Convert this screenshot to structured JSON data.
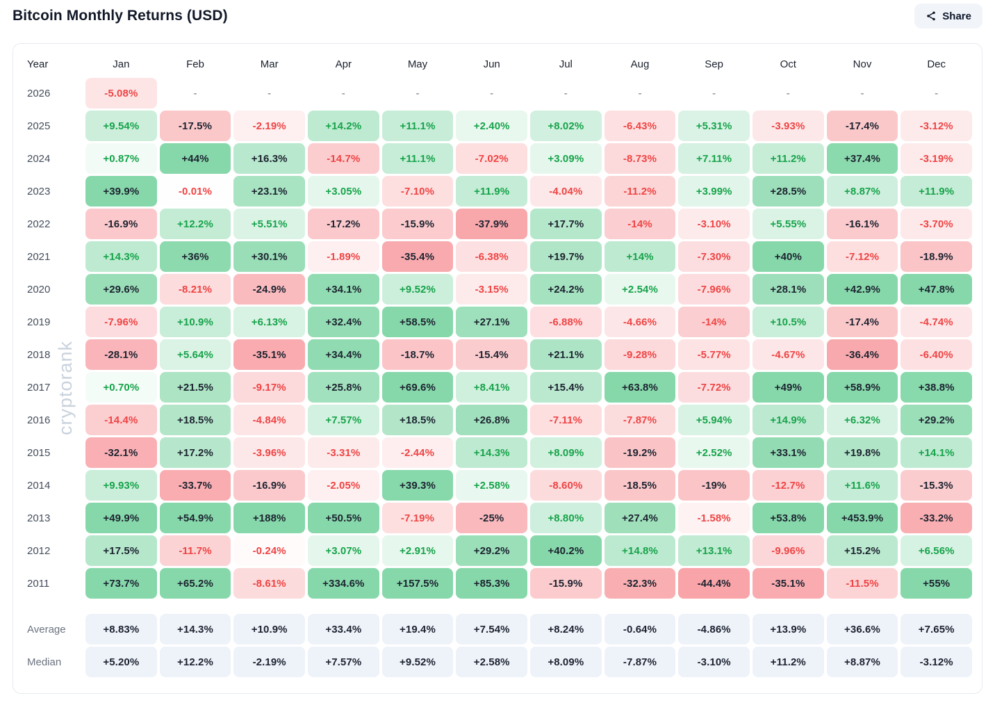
{
  "header": {
    "title": "Bitcoin Monthly Returns (USD)",
    "share_label": "Share"
  },
  "watermark": {
    "text": "cryptorank"
  },
  "colors": {
    "positive_text": "#16a34a",
    "negative_text": "#ef4444",
    "strong_text": "#1c2330",
    "positive_bg_max": "#86d8aa",
    "negative_bg_max": "#f8a4a8",
    "summary_bg": "#eef2f9",
    "dash_text": "#6b7280",
    "dark_text_threshold": 15
  },
  "chart_data": {
    "type": "heatmap",
    "title": "Bitcoin Monthly Returns (USD)",
    "row_header": "Year",
    "columns": [
      "Jan",
      "Feb",
      "Mar",
      "Apr",
      "May",
      "Jun",
      "Jul",
      "Aug",
      "Sep",
      "Oct",
      "Nov",
      "Dec"
    ],
    "max_abs_for_scale": 40,
    "rows": [
      {
        "year": "2026",
        "display": [
          "-5.08%",
          "-",
          "-",
          "-",
          "-",
          "-",
          "-",
          "-",
          "-",
          "-",
          "-",
          "-"
        ],
        "values": [
          -5.08,
          null,
          null,
          null,
          null,
          null,
          null,
          null,
          null,
          null,
          null,
          null
        ]
      },
      {
        "year": "2025",
        "display": [
          "+9.54%",
          "-17.5%",
          "-2.19%",
          "+14.2%",
          "+11.1%",
          "+2.40%",
          "+8.02%",
          "-6.43%",
          "+5.31%",
          "-3.93%",
          "-17.4%",
          "-3.12%"
        ],
        "values": [
          9.54,
          -17.5,
          -2.19,
          14.2,
          11.1,
          2.4,
          8.02,
          -6.43,
          5.31,
          -3.93,
          -17.4,
          -3.12
        ]
      },
      {
        "year": "2024",
        "display": [
          "+0.87%",
          "+44%",
          "+16.3%",
          "-14.7%",
          "+11.1%",
          "-7.02%",
          "+3.09%",
          "-8.73%",
          "+7.11%",
          "+11.2%",
          "+37.4%",
          "-3.19%"
        ],
        "values": [
          0.87,
          44,
          16.3,
          -14.7,
          11.1,
          -7.02,
          3.09,
          -8.73,
          7.11,
          11.2,
          37.4,
          -3.19
        ]
      },
      {
        "year": "2023",
        "display": [
          "+39.9%",
          "-0.01%",
          "+23.1%",
          "+3.05%",
          "-7.10%",
          "+11.9%",
          "-4.04%",
          "-11.2%",
          "+3.99%",
          "+28.5%",
          "+8.87%",
          "+11.9%"
        ],
        "values": [
          39.9,
          -0.01,
          23.1,
          3.05,
          -7.1,
          11.9,
          -4.04,
          -11.2,
          3.99,
          28.5,
          8.87,
          11.9
        ]
      },
      {
        "year": "2022",
        "display": [
          "-16.9%",
          "+12.2%",
          "+5.51%",
          "-17.2%",
          "-15.9%",
          "-37.9%",
          "+17.7%",
          "-14%",
          "-3.10%",
          "+5.55%",
          "-16.1%",
          "-3.70%"
        ],
        "values": [
          -16.9,
          12.2,
          5.51,
          -17.2,
          -15.9,
          -37.9,
          17.7,
          -14,
          -3.1,
          5.55,
          -16.1,
          -3.7
        ]
      },
      {
        "year": "2021",
        "display": [
          "+14.3%",
          "+36%",
          "+30.1%",
          "-1.89%",
          "-35.4%",
          "-6.38%",
          "+19.7%",
          "+14%",
          "-7.30%",
          "+40%",
          "-7.12%",
          "-18.9%"
        ],
        "values": [
          14.3,
          36,
          30.1,
          -1.89,
          -35.4,
          -6.38,
          19.7,
          14,
          -7.3,
          40,
          -7.12,
          -18.9
        ]
      },
      {
        "year": "2020",
        "display": [
          "+29.6%",
          "-8.21%",
          "-24.9%",
          "+34.1%",
          "+9.52%",
          "-3.15%",
          "+24.2%",
          "+2.54%",
          "-7.96%",
          "+28.1%",
          "+42.9%",
          "+47.8%"
        ],
        "values": [
          29.6,
          -8.21,
          -24.9,
          34.1,
          9.52,
          -3.15,
          24.2,
          2.54,
          -7.96,
          28.1,
          42.9,
          47.8
        ]
      },
      {
        "year": "2019",
        "display": [
          "-7.96%",
          "+10.9%",
          "+6.13%",
          "+32.4%",
          "+58.5%",
          "+27.1%",
          "-6.88%",
          "-4.66%",
          "-14%",
          "+10.5%",
          "-17.4%",
          "-4.74%"
        ],
        "values": [
          -7.96,
          10.9,
          6.13,
          32.4,
          58.5,
          27.1,
          -6.88,
          -4.66,
          -14,
          10.5,
          -17.4,
          -4.74
        ]
      },
      {
        "year": "2018",
        "display": [
          "-28.1%",
          "+5.64%",
          "-35.1%",
          "+34.4%",
          "-18.7%",
          "-15.4%",
          "+21.1%",
          "-9.28%",
          "-5.77%",
          "-4.67%",
          "-36.4%",
          "-6.40%"
        ],
        "values": [
          -28.1,
          5.64,
          -35.1,
          34.4,
          -18.7,
          -15.4,
          21.1,
          -9.28,
          -5.77,
          -4.67,
          -36.4,
          -6.4
        ]
      },
      {
        "year": "2017",
        "display": [
          "+0.70%",
          "+21.5%",
          "-9.17%",
          "+25.8%",
          "+69.6%",
          "+8.41%",
          "+15.4%",
          "+63.8%",
          "-7.72%",
          "+49%",
          "+58.9%",
          "+38.8%"
        ],
        "values": [
          0.7,
          21.5,
          -9.17,
          25.8,
          69.6,
          8.41,
          15.4,
          63.8,
          -7.72,
          49,
          58.9,
          38.8
        ]
      },
      {
        "year": "2016",
        "display": [
          "-14.4%",
          "+18.5%",
          "-4.84%",
          "+7.57%",
          "+18.5%",
          "+26.8%",
          "-7.11%",
          "-7.87%",
          "+5.94%",
          "+14.9%",
          "+6.32%",
          "+29.2%"
        ],
        "values": [
          -14.4,
          18.5,
          -4.84,
          7.57,
          18.5,
          26.8,
          -7.11,
          -7.87,
          5.94,
          14.9,
          6.32,
          29.2
        ]
      },
      {
        "year": "2015",
        "display": [
          "-32.1%",
          "+17.2%",
          "-3.96%",
          "-3.31%",
          "-2.44%",
          "+14.3%",
          "+8.09%",
          "-19.2%",
          "+2.52%",
          "+33.1%",
          "+19.8%",
          "+14.1%"
        ],
        "values": [
          -32.1,
          17.2,
          -3.96,
          -3.31,
          -2.44,
          14.3,
          8.09,
          -19.2,
          2.52,
          33.1,
          19.8,
          14.1
        ]
      },
      {
        "year": "2014",
        "display": [
          "+9.93%",
          "-33.7%",
          "-16.9%",
          "-2.05%",
          "+39.3%",
          "+2.58%",
          "-8.60%",
          "-18.5%",
          "-19%",
          "-12.7%",
          "+11.6%",
          "-15.3%"
        ],
        "values": [
          9.93,
          -33.7,
          -16.9,
          -2.05,
          39.3,
          2.58,
          -8.6,
          -18.5,
          -19,
          -12.7,
          11.6,
          -15.3
        ]
      },
      {
        "year": "2013",
        "display": [
          "+49.9%",
          "+54.9%",
          "+188%",
          "+50.5%",
          "-7.19%",
          "-25%",
          "+8.80%",
          "+27.4%",
          "-1.58%",
          "+53.8%",
          "+453.9%",
          "-33.2%"
        ],
        "values": [
          49.9,
          54.9,
          188,
          50.5,
          -7.19,
          -25,
          8.8,
          27.4,
          -1.58,
          53.8,
          453.9,
          -33.2
        ]
      },
      {
        "year": "2012",
        "display": [
          "+17.5%",
          "-11.7%",
          "-0.24%",
          "+3.07%",
          "+2.91%",
          "+29.2%",
          "+40.2%",
          "+14.8%",
          "+13.1%",
          "-9.96%",
          "+15.2%",
          "+6.56%"
        ],
        "values": [
          17.5,
          -11.7,
          -0.24,
          3.07,
          2.91,
          29.2,
          40.2,
          14.8,
          13.1,
          -9.96,
          15.2,
          6.56
        ]
      },
      {
        "year": "2011",
        "display": [
          "+73.7%",
          "+65.2%",
          "-8.61%",
          "+334.6%",
          "+157.5%",
          "+85.3%",
          "-15.9%",
          "-32.3%",
          "-44.4%",
          "-35.1%",
          "-11.5%",
          "+55%"
        ],
        "values": [
          73.7,
          65.2,
          -8.61,
          334.6,
          157.5,
          85.3,
          -15.9,
          -32.3,
          -44.4,
          -35.1,
          -11.5,
          55
        ]
      }
    ],
    "summary": [
      {
        "label": "Average",
        "display": [
          "+8.83%",
          "+14.3%",
          "+10.9%",
          "+33.4%",
          "+19.4%",
          "+7.54%",
          "+8.24%",
          "-0.64%",
          "-4.86%",
          "+13.9%",
          "+36.6%",
          "+7.65%"
        ],
        "values": [
          8.83,
          14.3,
          10.9,
          33.4,
          19.4,
          7.54,
          8.24,
          -0.64,
          -4.86,
          13.9,
          36.6,
          7.65
        ]
      },
      {
        "label": "Median",
        "display": [
          "+5.20%",
          "+12.2%",
          "-2.19%",
          "+7.57%",
          "+9.52%",
          "+2.58%",
          "+8.09%",
          "-7.87%",
          "-3.10%",
          "+11.2%",
          "+8.87%",
          "-3.12%"
        ],
        "values": [
          5.2,
          12.2,
          -2.19,
          7.57,
          9.52,
          2.58,
          8.09,
          -7.87,
          -3.1,
          11.2,
          8.87,
          -3.12
        ]
      }
    ]
  }
}
